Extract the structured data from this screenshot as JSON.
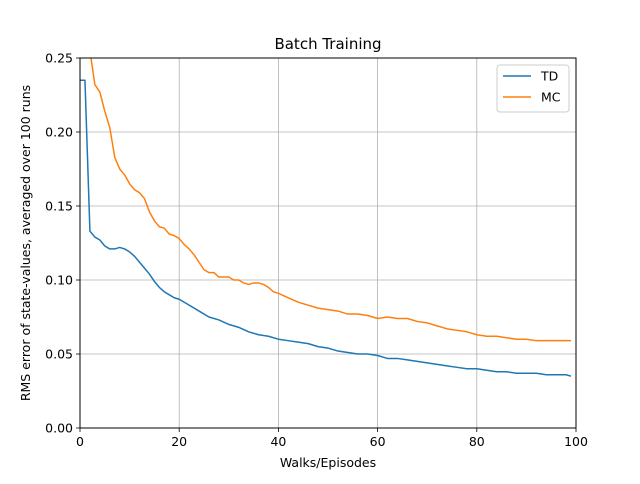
{
  "chart_data": {
    "type": "line",
    "title": "Batch Training",
    "xlabel": "Walks/Episodes",
    "ylabel": "RMS error of state-values, averaged over 100 runs",
    "xlim": [
      0,
      100
    ],
    "ylim": [
      0,
      0.25
    ],
    "x_ticks": [
      0,
      20,
      40,
      60,
      80,
      100
    ],
    "x_tick_labels": [
      "0",
      "20",
      "40",
      "60",
      "80",
      "100"
    ],
    "y_ticks": [
      0,
      0.05,
      0.1,
      0.15,
      0.2,
      0.25
    ],
    "y_tick_labels": [
      "0.00",
      "0.05",
      "0.10",
      "0.15",
      "0.20",
      "0.25"
    ],
    "grid": true,
    "legend_position": "top-right",
    "series": [
      {
        "name": "TD",
        "color": "#1f77b4",
        "points": [
          [
            0,
            0.235
          ],
          [
            1,
            0.235
          ],
          [
            2,
            0.133
          ],
          [
            3,
            0.129
          ],
          [
            4,
            0.127
          ],
          [
            5,
            0.123
          ],
          [
            6,
            0.121
          ],
          [
            7,
            0.121
          ],
          [
            8,
            0.122
          ],
          [
            9,
            0.121
          ],
          [
            10,
            0.119
          ],
          [
            11,
            0.116
          ],
          [
            12,
            0.112
          ],
          [
            13,
            0.108
          ],
          [
            14,
            0.104
          ],
          [
            15,
            0.099
          ],
          [
            16,
            0.095
          ],
          [
            17,
            0.092
          ],
          [
            18,
            0.09
          ],
          [
            19,
            0.088
          ],
          [
            20,
            0.087
          ],
          [
            22,
            0.083
          ],
          [
            24,
            0.079
          ],
          [
            26,
            0.075
          ],
          [
            28,
            0.073
          ],
          [
            30,
            0.07
          ],
          [
            32,
            0.068
          ],
          [
            34,
            0.065
          ],
          [
            36,
            0.063
          ],
          [
            38,
            0.062
          ],
          [
            40,
            0.06
          ],
          [
            42,
            0.059
          ],
          [
            44,
            0.058
          ],
          [
            46,
            0.057
          ],
          [
            48,
            0.055
          ],
          [
            50,
            0.054
          ],
          [
            52,
            0.052
          ],
          [
            54,
            0.051
          ],
          [
            56,
            0.05
          ],
          [
            58,
            0.05
          ],
          [
            60,
            0.049
          ],
          [
            62,
            0.047
          ],
          [
            64,
            0.047
          ],
          [
            66,
            0.046
          ],
          [
            68,
            0.045
          ],
          [
            70,
            0.044
          ],
          [
            72,
            0.043
          ],
          [
            74,
            0.042
          ],
          [
            76,
            0.041
          ],
          [
            78,
            0.04
          ],
          [
            80,
            0.04
          ],
          [
            82,
            0.039
          ],
          [
            84,
            0.038
          ],
          [
            86,
            0.038
          ],
          [
            88,
            0.037
          ],
          [
            90,
            0.037
          ],
          [
            92,
            0.037
          ],
          [
            94,
            0.036
          ],
          [
            96,
            0.036
          ],
          [
            98,
            0.036
          ],
          [
            99,
            0.035
          ]
        ]
      },
      {
        "name": "MC",
        "color": "#ff7f0e",
        "points": [
          [
            2,
            0.255
          ],
          [
            3,
            0.232
          ],
          [
            4,
            0.227
          ],
          [
            5,
            0.214
          ],
          [
            6,
            0.203
          ],
          [
            7,
            0.183
          ],
          [
            8,
            0.175
          ],
          [
            9,
            0.171
          ],
          [
            10,
            0.165
          ],
          [
            11,
            0.161
          ],
          [
            12,
            0.159
          ],
          [
            13,
            0.155
          ],
          [
            14,
            0.146
          ],
          [
            15,
            0.14
          ],
          [
            16,
            0.136
          ],
          [
            17,
            0.135
          ],
          [
            18,
            0.131
          ],
          [
            19,
            0.13
          ],
          [
            20,
            0.128
          ],
          [
            21,
            0.124
          ],
          [
            22,
            0.121
          ],
          [
            23,
            0.117
          ],
          [
            24,
            0.112
          ],
          [
            25,
            0.107
          ],
          [
            26,
            0.105
          ],
          [
            27,
            0.105
          ],
          [
            28,
            0.102
          ],
          [
            29,
            0.102
          ],
          [
            30,
            0.102
          ],
          [
            31,
            0.1
          ],
          [
            32,
            0.1
          ],
          [
            33,
            0.098
          ],
          [
            34,
            0.097
          ],
          [
            35,
            0.098
          ],
          [
            36,
            0.098
          ],
          [
            37,
            0.097
          ],
          [
            38,
            0.095
          ],
          [
            39,
            0.092
          ],
          [
            40,
            0.091
          ],
          [
            42,
            0.088
          ],
          [
            44,
            0.085
          ],
          [
            46,
            0.083
          ],
          [
            48,
            0.081
          ],
          [
            50,
            0.08
          ],
          [
            52,
            0.079
          ],
          [
            54,
            0.077
          ],
          [
            56,
            0.077
          ],
          [
            58,
            0.076
          ],
          [
            60,
            0.074
          ],
          [
            62,
            0.075
          ],
          [
            64,
            0.074
          ],
          [
            66,
            0.074
          ],
          [
            68,
            0.072
          ],
          [
            70,
            0.071
          ],
          [
            72,
            0.069
          ],
          [
            74,
            0.067
          ],
          [
            76,
            0.066
          ],
          [
            78,
            0.065
          ],
          [
            80,
            0.063
          ],
          [
            82,
            0.062
          ],
          [
            84,
            0.062
          ],
          [
            86,
            0.061
          ],
          [
            88,
            0.06
          ],
          [
            90,
            0.06
          ],
          [
            92,
            0.059
          ],
          [
            94,
            0.059
          ],
          [
            96,
            0.059
          ],
          [
            98,
            0.059
          ],
          [
            99,
            0.059
          ]
        ]
      }
    ]
  }
}
